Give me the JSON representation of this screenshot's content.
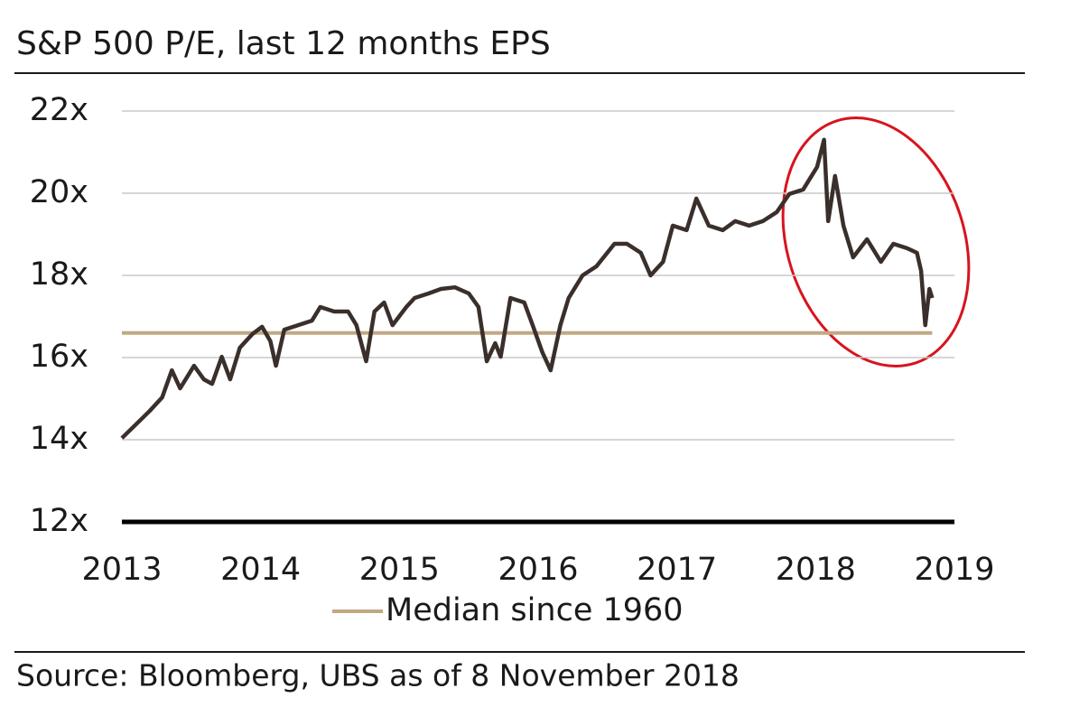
{
  "chart_data": {
    "type": "line",
    "title": "S&P 500 P/E, last 12 months EPS",
    "source": "Source: Bloomberg, UBS as of 8 November 2018",
    "xlim": [
      2013,
      2019
    ],
    "xticks": [
      2013,
      2014,
      2015,
      2016,
      2017,
      2018,
      2019
    ],
    "ylim": [
      12,
      22
    ],
    "yticks": [
      {
        "value": 12,
        "label": "12x"
      },
      {
        "value": 14,
        "label": "14x"
      },
      {
        "value": 16,
        "label": "16x"
      },
      {
        "value": 18,
        "label": "18x"
      },
      {
        "value": 20,
        "label": "20x"
      },
      {
        "value": 22,
        "label": "22x"
      }
    ],
    "grid": true,
    "series": [
      {
        "color": "#3a2f2a",
        "x": [
          2013.0,
          2013.1,
          2013.2,
          2013.29,
          2013.36,
          2013.42,
          2013.52,
          2013.59,
          2013.65,
          2013.72,
          2013.78,
          2013.85,
          2013.94,
          2014.01,
          2014.07,
          2014.11,
          2014.17,
          2014.27,
          2014.37,
          2014.43,
          2014.53,
          2014.63,
          2014.69,
          2014.76,
          2014.82,
          2014.89,
          2014.95,
          2015.05,
          2015.11,
          2015.21,
          2015.3,
          2015.4,
          2015.5,
          2015.57,
          2015.63,
          2015.69,
          2015.73,
          2015.8,
          2015.9,
          2015.96,
          2016.03,
          2016.09,
          2016.16,
          2016.22,
          2016.32,
          2016.42,
          2016.55,
          2016.64,
          2016.74,
          2016.81,
          2016.9,
          2016.97,
          2017.07,
          2017.14,
          2017.23,
          2017.33,
          2017.42,
          2017.52,
          2017.62,
          2017.72,
          2017.81,
          2017.91,
          2018.01,
          2018.06,
          2018.09,
          2018.14,
          2018.2,
          2018.27,
          2018.37,
          2018.47,
          2018.56,
          2018.66,
          2018.73,
          2018.76,
          2018.79,
          2018.82,
          2018.84
        ],
        "values": [
          14.04,
          14.37,
          14.7,
          15.03,
          15.69,
          15.25,
          15.8,
          15.47,
          15.36,
          16.02,
          15.47,
          16.24,
          16.57,
          16.75,
          16.4,
          15.8,
          16.68,
          16.79,
          16.9,
          17.23,
          17.12,
          17.12,
          16.79,
          15.91,
          17.12,
          17.34,
          16.79,
          17.23,
          17.45,
          17.56,
          17.67,
          17.71,
          17.56,
          17.23,
          15.91,
          16.35,
          16.02,
          17.45,
          17.34,
          16.79,
          16.13,
          15.69,
          16.79,
          17.45,
          18.0,
          18.22,
          18.77,
          18.77,
          18.55,
          18.0,
          18.33,
          19.21,
          19.1,
          19.87,
          19.21,
          19.1,
          19.32,
          19.21,
          19.32,
          19.54,
          19.98,
          20.09,
          20.64,
          21.3,
          19.32,
          20.42,
          19.21,
          18.44,
          18.88,
          18.33,
          18.77,
          18.66,
          18.55,
          18.11,
          16.79,
          17.67,
          17.45
        ]
      },
      {
        "name": "Median since 1960",
        "color": "#c2a882",
        "x": [
          2013.0,
          2018.84
        ],
        "values": [
          16.6,
          16.6
        ]
      }
    ]
  }
}
